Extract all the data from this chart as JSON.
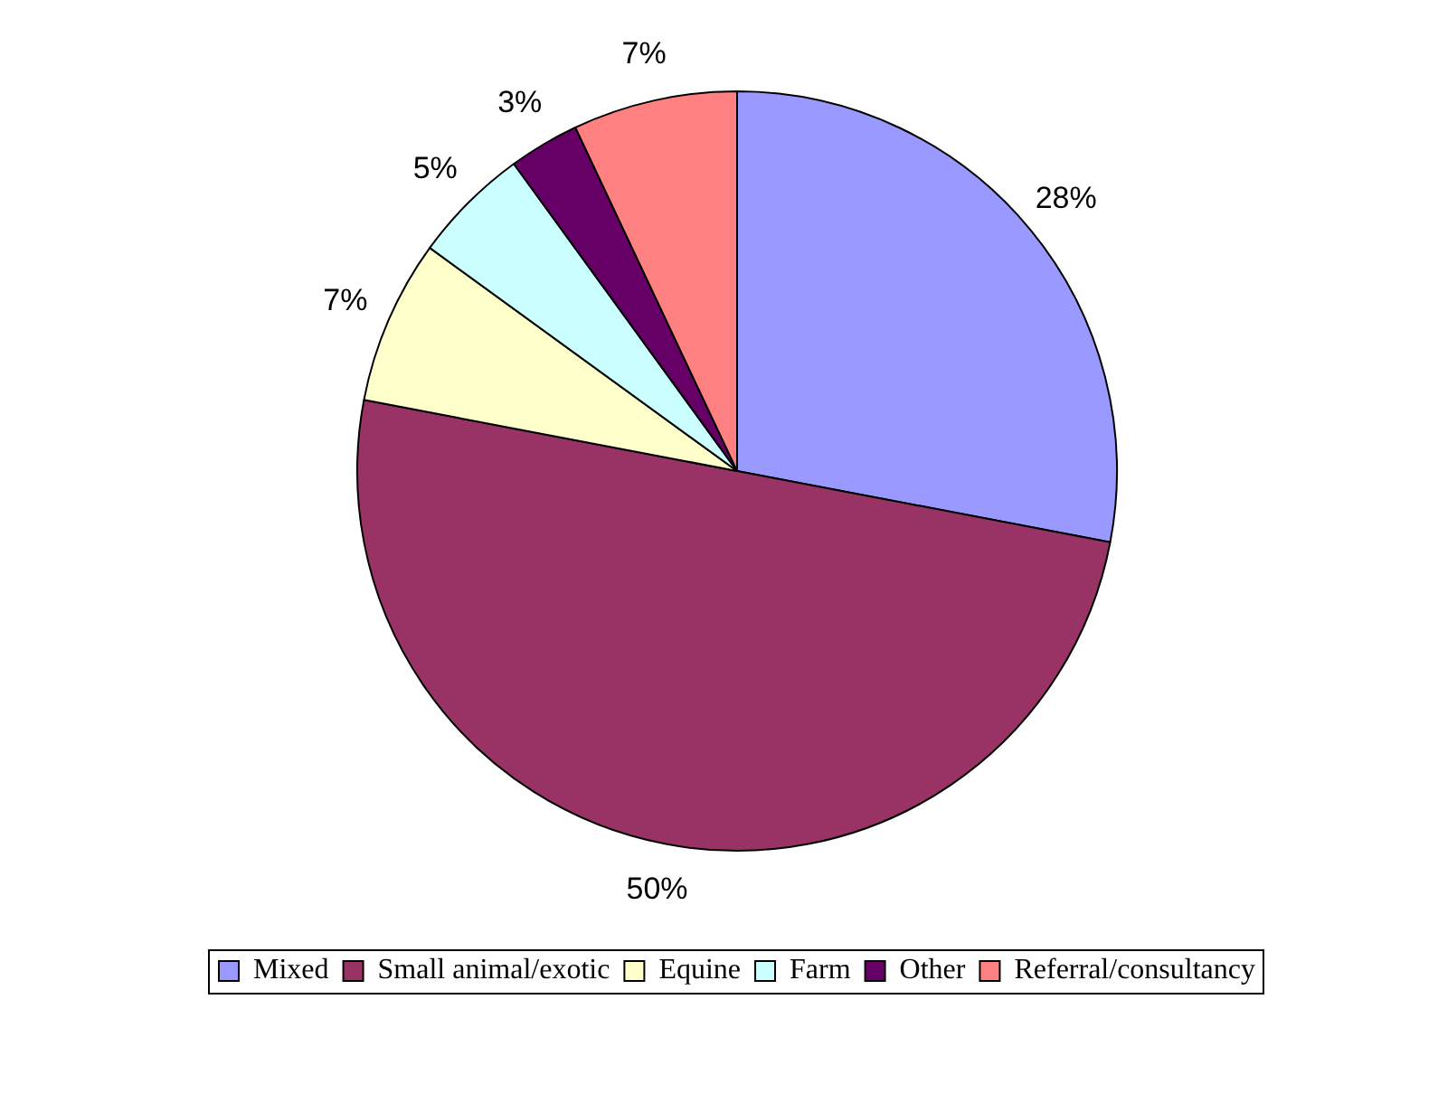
{
  "chart_data": {
    "type": "pie",
    "categories": [
      "Mixed",
      "Small animal/exotic",
      "Equine",
      "Farm",
      "Other",
      "Referral/consultancy"
    ],
    "values": [
      28,
      50,
      7,
      5,
      3,
      7
    ],
    "colors": [
      "#9999ff",
      "#993366",
      "#ffffcc",
      "#ccffff",
      "#660066",
      "#ff8080"
    ],
    "value_labels": [
      "28%",
      "50%",
      "7%",
      "5%",
      "3%",
      "7%"
    ],
    "legend": "bottom"
  }
}
